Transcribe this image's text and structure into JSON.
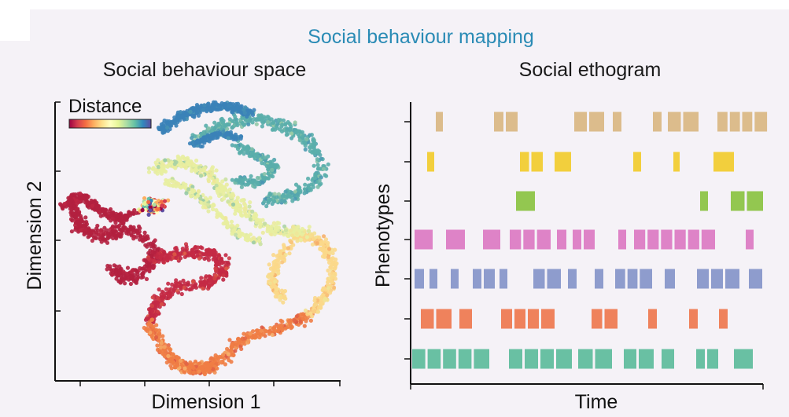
{
  "figure": {
    "title": "Social behaviour mapping",
    "background_color": "#f5f2f7",
    "title_color": "#2a8bb5"
  },
  "chart_data": [
    {
      "type": "scatter",
      "title": "Social behaviour space",
      "xlabel": "Dimension 1",
      "ylabel": "Dimension 2",
      "colorbar_label": "Distance",
      "colormap": "Spectral (red → yellow → blue)",
      "colormap_colors": [
        "#9e0142",
        "#d53e4f",
        "#f46d43",
        "#fdae61",
        "#fee08b",
        "#ffffbf",
        "#e6f598",
        "#abdda4",
        "#66c2a5",
        "#3288bd",
        "#5e4fa2"
      ],
      "tick_labels_shown": false,
      "grid": false,
      "clusters": [
        {
          "region": "left cluster",
          "distance_color": "#b3203f"
        },
        {
          "region": "lower-left band",
          "distance_color": "#c42a45"
        },
        {
          "region": "bottom arc",
          "distance_color": "#ef7d45"
        },
        {
          "region": "right arc",
          "distance_color": "#fbd88a"
        },
        {
          "region": "center band",
          "distance_color": "#e8eea0"
        },
        {
          "region": "upper-right arc",
          "distance_color": "#5aaeab"
        },
        {
          "region": "top hook",
          "distance_color": "#3b82b8"
        }
      ]
    },
    {
      "type": "ethogram",
      "title": "Social ethogram",
      "xlabel": "Time",
      "ylabel": "Phenotypes",
      "tick_labels_shown": false,
      "grid": false,
      "series": [
        {
          "color": "#dcbc8c",
          "events": [
            [
              554,
              563
            ],
            [
              628,
              658
            ],
            [
              730,
              768
            ],
            [
              779,
              790
            ],
            [
              830,
              841
            ],
            [
              849,
              888
            ],
            [
              912,
              975
            ]
          ]
        },
        {
          "color": "#f2cf3d",
          "events": [
            [
              543,
              552
            ],
            [
              661,
              690
            ],
            [
              705,
              726
            ],
            [
              805,
              815
            ],
            [
              856,
              864
            ],
            [
              907,
              933
            ]
          ]
        },
        {
          "color": "#93c750",
          "events": [
            [
              656,
              680
            ],
            [
              890,
              900
            ],
            [
              929,
              970
            ]
          ]
        },
        {
          "color": "#de83c7",
          "events": [
            [
              527,
              550
            ],
            [
              567,
              591
            ],
            [
              614,
              636
            ],
            [
              648,
              700
            ],
            [
              708,
              720
            ],
            [
              728,
              756
            ],
            [
              786,
              796
            ],
            [
              806,
              909
            ],
            [
              948,
              958
            ]
          ]
        },
        {
          "color": "#8e9ccd",
          "events": [
            [
              527,
              539
            ],
            [
              546,
              556
            ],
            [
              573,
              583
            ],
            [
              601,
              629
            ],
            [
              635,
              645
            ],
            [
              678,
              713
            ],
            [
              722,
              733
            ],
            [
              756,
              767
            ],
            [
              782,
              829
            ],
            [
              845,
              858
            ],
            [
              886,
              940
            ],
            [
              952,
              969
            ]
          ]
        },
        {
          "color": "#ef825c",
          "events": [
            [
              535,
              574
            ],
            [
              584,
              600
            ],
            [
              637,
              705
            ],
            [
              752,
              785
            ],
            [
              824,
              835
            ],
            [
              876,
              887
            ],
            [
              914,
              925
            ]
          ]
        },
        {
          "color": "#69c0a3",
          "events": [
            [
              524,
              622
            ],
            [
              647,
              727
            ],
            [
              735,
              778
            ],
            [
              793,
              831
            ],
            [
              841,
              857
            ],
            [
              885,
              913
            ],
            [
              933,
              957
            ]
          ]
        }
      ]
    }
  ]
}
